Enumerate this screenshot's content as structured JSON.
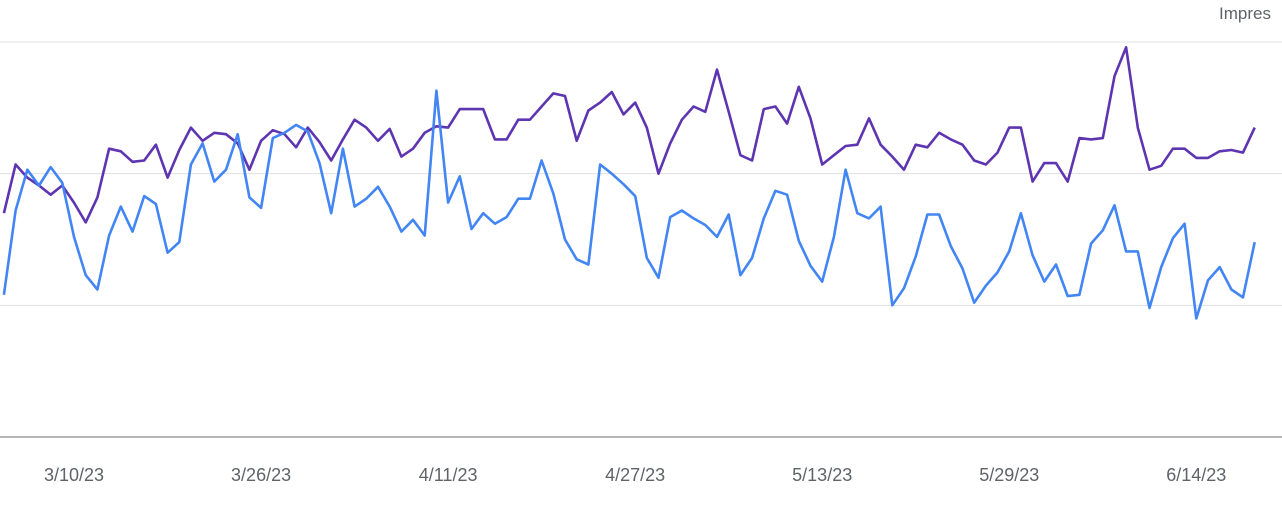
{
  "chart_data": {
    "type": "line",
    "header": "Impres",
    "categories": [
      null,
      null,
      null,
      null,
      null,
      null,
      "3/10/23",
      null,
      null,
      null,
      null,
      null,
      null,
      null,
      null,
      null,
      null,
      null,
      null,
      null,
      null,
      null,
      "3/26/23",
      null,
      null,
      null,
      null,
      null,
      null,
      null,
      null,
      null,
      null,
      null,
      null,
      null,
      null,
      null,
      "4/11/23",
      null,
      null,
      null,
      null,
      null,
      null,
      null,
      null,
      null,
      null,
      null,
      null,
      null,
      null,
      null,
      "4/27/23",
      null,
      null,
      null,
      null,
      null,
      null,
      null,
      null,
      null,
      null,
      null,
      null,
      null,
      null,
      null,
      "5/13/23",
      null,
      null,
      null,
      null,
      null,
      null,
      null,
      null,
      null,
      null,
      null,
      null,
      null,
      null,
      null,
      "5/29/23",
      null,
      null,
      null,
      null,
      null,
      null,
      null,
      null,
      null,
      null,
      null,
      null,
      null,
      null,
      null,
      "6/14/23",
      null,
      null,
      null,
      null,
      null
    ],
    "series": [
      {
        "color": "#5e35b1",
        "values": [
          1.7,
          2.07,
          1.97,
          1.91,
          1.84,
          1.91,
          1.78,
          1.63,
          1.82,
          2.19,
          2.17,
          2.09,
          2.1,
          2.22,
          1.97,
          2.18,
          2.35,
          2.25,
          2.31,
          2.3,
          2.23,
          2.03,
          2.25,
          2.33,
          2.3,
          2.2,
          2.35,
          2.24,
          2.1,
          2.26,
          2.41,
          2.35,
          2.25,
          2.34,
          2.13,
          2.19,
          2.31,
          2.36,
          2.35,
          2.49,
          2.49,
          2.49,
          2.26,
          2.26,
          2.41,
          2.41,
          2.51,
          2.61,
          2.59,
          2.25,
          2.48,
          2.54,
          2.62,
          2.45,
          2.54,
          2.35,
          2.0,
          2.23,
          2.41,
          2.51,
          2.47,
          2.79,
          2.47,
          2.14,
          2.1,
          2.49,
          2.51,
          2.38,
          2.66,
          2.42,
          2.07,
          2.14,
          2.21,
          2.22,
          2.42,
          2.22,
          2.13,
          2.03,
          2.22,
          2.2,
          2.31,
          2.26,
          2.22,
          2.1,
          2.07,
          2.16,
          2.35,
          2.35,
          1.94,
          2.08,
          2.08,
          1.94,
          2.27,
          2.26,
          2.27,
          2.74,
          2.96,
          2.35,
          2.03,
          2.06,
          2.19,
          2.19,
          2.12,
          2.12,
          2.17,
          2.18,
          2.16,
          2.35
        ]
      },
      {
        "color": "#4285f4",
        "values": [
          1.08,
          1.72,
          2.03,
          1.91,
          2.05,
          1.93,
          1.52,
          1.23,
          1.12,
          1.53,
          1.75,
          1.56,
          1.83,
          1.77,
          1.4,
          1.48,
          2.07,
          2.23,
          1.94,
          2.03,
          2.3,
          1.82,
          1.74,
          2.27,
          2.31,
          2.37,
          2.32,
          2.08,
          1.7,
          2.19,
          1.75,
          1.81,
          1.9,
          1.75,
          1.56,
          1.65,
          1.53,
          2.63,
          1.78,
          1.98,
          1.58,
          1.7,
          1.62,
          1.67,
          1.81,
          1.81,
          2.1,
          1.85,
          1.5,
          1.35,
          1.31,
          2.07,
          2.0,
          1.92,
          1.83,
          1.36,
          1.21,
          1.67,
          1.72,
          1.66,
          1.61,
          1.52,
          1.69,
          1.23,
          1.36,
          1.66,
          1.87,
          1.84,
          1.49,
          1.3,
          1.18,
          1.52,
          2.03,
          1.7,
          1.66,
          1.75,
          1.0,
          1.13,
          1.37,
          1.69,
          1.69,
          1.45,
          1.28,
          1.02,
          1.15,
          1.25,
          1.41,
          1.7,
          1.38,
          1.18,
          1.31,
          1.07,
          1.08,
          1.47,
          1.57,
          1.76,
          1.41,
          1.41,
          0.98,
          1.29,
          1.51,
          1.62,
          0.9,
          1.19,
          1.29,
          1.12,
          1.06,
          1.48
        ]
      }
    ],
    "ylim": [
      0,
      3
    ],
    "ygrid": [
      1,
      2,
      3
    ],
    "grid": true
  }
}
